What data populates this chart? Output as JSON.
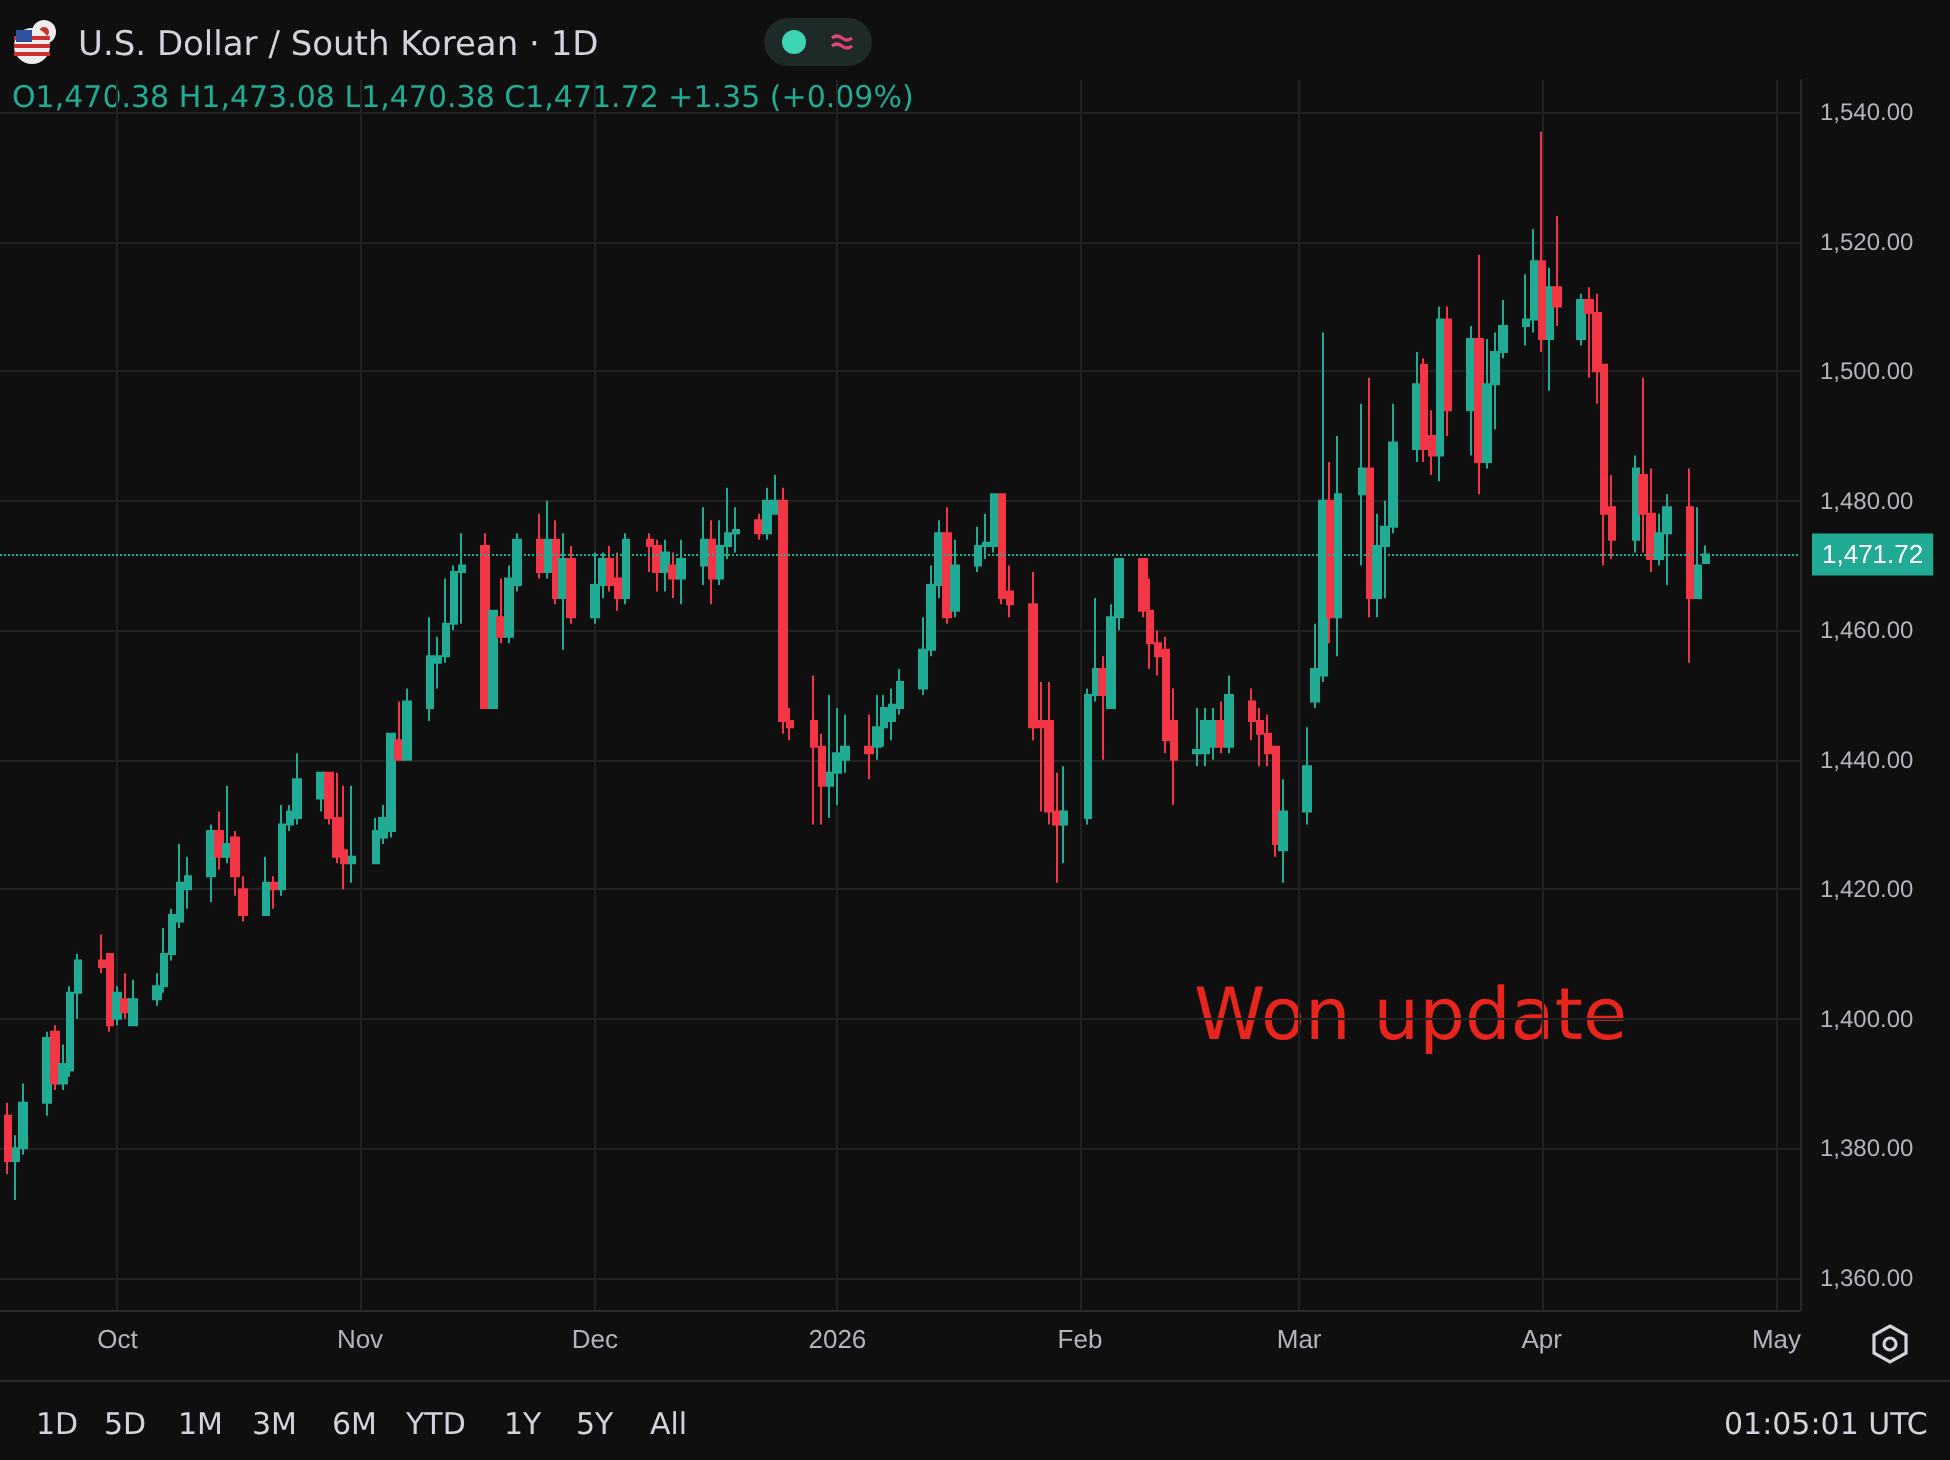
{
  "chart_data": {
    "type": "candlestick",
    "title": "U.S. Dollar / South Korean · 1D",
    "annotations": [
      "O1,470.38 H1,473.08 L1,470.38 C1,471.72 +1.35 (+0.09%)",
      "Won update",
      "1D",
      "5D",
      "1M",
      "3M",
      "6M",
      "YTD",
      "1Y",
      "5Y",
      "All",
      "01:05:01 UTC"
    ],
    "x": [
      "2025-09-17",
      "2025-09-18",
      "2025-09-19",
      "2025-09-22",
      "2025-09-23",
      "2025-09-24",
      "2025-09-25",
      "2025-09-26",
      "2025-09-29",
      "2025-09-30",
      "2025-10-01",
      "2025-10-02",
      "2025-10-03",
      "2025-10-06",
      "2025-10-07",
      "2025-10-08",
      "2025-10-09",
      "2025-10-10",
      "2025-10-13",
      "2025-10-14",
      "2025-10-15",
      "2025-10-16",
      "2025-10-17",
      "2025-10-20",
      "2025-10-21",
      "2025-10-22",
      "2025-10-23",
      "2025-10-24",
      "2025-10-27",
      "2025-10-28",
      "2025-10-29",
      "2025-10-30",
      "2025-10-31",
      "2025-11-03",
      "2025-11-04",
      "2025-11-05",
      "2025-11-06",
      "2025-11-07",
      "2025-11-10",
      "2025-11-11",
      "2025-11-12",
      "2025-11-13",
      "2025-11-14",
      "2025-11-17",
      "2025-11-18",
      "2025-11-19",
      "2025-11-20",
      "2025-11-21",
      "2025-11-24",
      "2025-11-25",
      "2025-11-26",
      "2025-11-27",
      "2025-11-28",
      "2025-12-01",
      "2025-12-02",
      "2025-12-03",
      "2025-12-04",
      "2025-12-05",
      "2025-12-08",
      "2025-12-09",
      "2025-12-10",
      "2025-12-11",
      "2025-12-12",
      "2025-12-15",
      "2025-12-16",
      "2025-12-17",
      "2025-12-18",
      "2025-12-19",
      "2025-12-22",
      "2025-12-23",
      "2025-12-24",
      "2025-12-25",
      "2025-12-26",
      "2025-12-29",
      "2025-12-30",
      "2025-12-31",
      "2026-01-01",
      "2026-01-02",
      "2026-01-05",
      "2026-01-06",
      "2026-01-07",
      "2026-01-08",
      "2026-01-09",
      "2026-01-12",
      "2026-01-13",
      "2026-01-14",
      "2026-01-15",
      "2026-01-16",
      "2026-01-19",
      "2026-01-20",
      "2026-01-21",
      "2026-01-22",
      "2026-01-23",
      "2026-01-26",
      "2026-01-27",
      "2026-01-28",
      "2026-01-29",
      "2026-01-30",
      "2026-02-02",
      "2026-02-03",
      "2026-02-04",
      "2026-02-05",
      "2026-02-06",
      "2026-02-09",
      "2026-02-10",
      "2026-02-11",
      "2026-02-12",
      "2026-02-13",
      "2026-02-16",
      "2026-02-17",
      "2026-02-18",
      "2026-02-19",
      "2026-02-20",
      "2026-02-23",
      "2026-02-24",
      "2026-02-25",
      "2026-02-26",
      "2026-02-27",
      "2026-03-02",
      "2026-03-03",
      "2026-03-04",
      "2026-03-05",
      "2026-03-06",
      "2026-03-09",
      "2026-03-10",
      "2026-03-11",
      "2026-03-12",
      "2026-03-13",
      "2026-03-16",
      "2026-03-17",
      "2026-03-18",
      "2026-03-19",
      "2026-03-20",
      "2026-03-23",
      "2026-03-24",
      "2026-03-25",
      "2026-03-26",
      "2026-03-27",
      "2026-03-30",
      "2026-03-31",
      "2026-04-01",
      "2026-04-02",
      "2026-04-03",
      "2026-04-06",
      "2026-04-07",
      "2026-04-08",
      "2026-04-09",
      "2026-04-10",
      "2026-04-13",
      "2026-04-14",
      "2026-04-15",
      "2026-04-16",
      "2026-04-17",
      "2026-04-20",
      "2026-04-21",
      "2026-04-22"
    ],
    "ohlc": [
      [
        1385,
        1387,
        1376,
        1378
      ],
      [
        1378,
        1382,
        1372,
        1380
      ],
      [
        1380,
        1390,
        1379,
        1387
      ],
      [
        1387,
        1398,
        1385,
        1397
      ],
      [
        1398,
        1399,
        1389,
        1390
      ],
      [
        1390,
        1396,
        1389,
        1393
      ],
      [
        1392,
        1405,
        1391,
        1404
      ],
      [
        1404,
        1410,
        1400,
        1409
      ],
      [
        1409,
        1413,
        1407,
        1408
      ],
      [
        1410,
        1410,
        1398,
        1399
      ],
      [
        1400,
        1405,
        1399,
        1404
      ],
      [
        1403,
        1407,
        1400,
        1401
      ],
      [
        1399,
        1406,
        1399,
        1403
      ],
      [
        1403,
        1407,
        1402,
        1405
      ],
      [
        1405,
        1414,
        1404,
        1410
      ],
      [
        1410,
        1417,
        1409,
        1416
      ],
      [
        1415,
        1427,
        1414,
        1421
      ],
      [
        1420,
        1425,
        1417,
        1422
      ],
      [
        1422,
        1430,
        1418,
        1429
      ],
      [
        1429,
        1432,
        1423,
        1425
      ],
      [
        1425,
        1436,
        1424,
        1427
      ],
      [
        1428,
        1429,
        1419,
        1422
      ],
      [
        1420,
        1422,
        1415,
        1416
      ],
      [
        1416,
        1425,
        1416,
        1421
      ],
      [
        1421,
        1422,
        1417,
        1420
      ],
      [
        1420,
        1433,
        1419,
        1430
      ],
      [
        1430,
        1433,
        1429,
        1432
      ],
      [
        1431,
        1441,
        1430,
        1437
      ],
      [
        1434,
        1438,
        1432,
        1438
      ],
      [
        1438,
        1438,
        1430,
        1431
      ],
      [
        1431,
        1438,
        1424,
        1425
      ],
      [
        1426,
        1436,
        1420,
        1424
      ],
      [
        1424,
        1436,
        1421,
        1425
      ],
      [
        1424,
        1431,
        1424,
        1429
      ],
      [
        1428,
        1433,
        1427,
        1431
      ],
      [
        1429,
        1444,
        1428,
        1444
      ],
      [
        1443,
        1449,
        1440,
        1440
      ],
      [
        1440,
        1451,
        1440,
        1449
      ],
      [
        1448,
        1462,
        1446,
        1456
      ],
      [
        1455,
        1459,
        1451,
        1456
      ],
      [
        1456,
        1468,
        1455,
        1461
      ],
      [
        1461,
        1470,
        1460,
        1469
      ],
      [
        1469,
        1475,
        1461,
        1470
      ],
      [
        1473,
        1475,
        1448,
        1448
      ],
      [
        1448,
        1463,
        1448,
        1463
      ],
      [
        1462,
        1468,
        1458,
        1459
      ],
      [
        1459,
        1470,
        1458,
        1468
      ],
      [
        1467,
        1475,
        1466,
        1474
      ],
      [
        1474,
        1478,
        1468,
        1469
      ],
      [
        1469,
        1480,
        1468,
        1474
      ],
      [
        1474,
        1477,
        1464,
        1465
      ],
      [
        1465,
        1475,
        1457,
        1471
      ],
      [
        1471,
        1473,
        1461,
        1462
      ],
      [
        1462,
        1472,
        1461,
        1467
      ],
      [
        1467,
        1472,
        1465,
        1471
      ],
      [
        1471,
        1473,
        1466,
        1467
      ],
      [
        1468,
        1472,
        1463,
        1465
      ],
      [
        1465,
        1475,
        1464,
        1474
      ],
      [
        1474,
        1475,
        1469,
        1473
      ],
      [
        1473,
        1474,
        1466,
        1469
      ],
      [
        1469,
        1474,
        1466,
        1472
      ],
      [
        1470,
        1472,
        1465,
        1468
      ],
      [
        1468,
        1474,
        1464,
        1471
      ],
      [
        1470,
        1479,
        1467,
        1474
      ],
      [
        1474,
        1477,
        1464,
        1468
      ],
      [
        1468,
        1477,
        1467,
        1473
      ],
      [
        1473,
        1482,
        1471,
        1475
      ],
      [
        1475,
        1479,
        1472,
        1475.5
      ],
      [
        1477,
        1478,
        1474,
        1475
      ],
      [
        1475,
        1482,
        1474,
        1480
      ],
      [
        1478,
        1484,
        1478,
        1480
      ],
      [
        1480,
        1482,
        1444,
        1446
      ],
      [
        1446,
        1448,
        1443,
        1445
      ],
      [
        1446,
        1453,
        1430,
        1442
      ],
      [
        1442,
        1444,
        1430,
        1436
      ],
      [
        1436,
        1450,
        1431,
        1438
      ],
      [
        1438,
        1448,
        1433,
        1441
      ],
      [
        1440,
        1447,
        1438,
        1442
      ],
      [
        1442,
        1447,
        1437,
        1441
      ],
      [
        1442,
        1450,
        1440,
        1445
      ],
      [
        1445,
        1450,
        1442,
        1448
      ],
      [
        1446,
        1451,
        1443,
        1448.5
      ],
      [
        1448,
        1454,
        1447,
        1452
      ],
      [
        1451,
        1462,
        1450,
        1457
      ],
      [
        1457,
        1470,
        1456,
        1467
      ],
      [
        1467,
        1477,
        1465,
        1475
      ],
      [
        1475,
        1479,
        1461,
        1462
      ],
      [
        1463,
        1474,
        1462,
        1470
      ],
      [
        1470,
        1476,
        1469,
        1473
      ],
      [
        1473,
        1478,
        1471,
        1473.5
      ],
      [
        1473,
        1481,
        1472,
        1481
      ],
      [
        1481,
        1481,
        1464,
        1465
      ],
      [
        1466,
        1470,
        1462,
        1464
      ],
      [
        1464,
        1469,
        1443,
        1445
      ],
      [
        1446,
        1452,
        1432,
        1445
      ],
      [
        1446,
        1452,
        1430,
        1432
      ],
      [
        1432,
        1438,
        1421,
        1430
      ],
      [
        1430,
        1439,
        1424,
        1432
      ],
      [
        1431,
        1451,
        1430,
        1450
      ],
      [
        1450,
        1465,
        1449,
        1454
      ],
      [
        1454,
        1456,
        1440,
        1450
      ],
      [
        1448,
        1464,
        1448,
        1462
      ],
      [
        1462,
        1471,
        1460,
        1471
      ],
      [
        1471,
        1471,
        1462,
        1463
      ],
      [
        1463,
        1468,
        1454,
        1458
      ],
      [
        1458,
        1460,
        1453,
        1456
      ],
      [
        1457,
        1459,
        1441,
        1443
      ],
      [
        1446,
        1451,
        1433,
        1440
      ],
      [
        1441,
        1448,
        1439,
        1441.5
      ],
      [
        1441,
        1448,
        1439,
        1446
      ],
      [
        1442,
        1448,
        1440,
        1446
      ],
      [
        1446,
        1449,
        1441,
        1442
      ],
      [
        1442,
        1453,
        1441,
        1450
      ],
      [
        1449,
        1451,
        1443,
        1446
      ],
      [
        1446,
        1448,
        1439,
        1444
      ],
      [
        1444,
        1447,
        1439,
        1441
      ],
      [
        1442,
        1442,
        1425,
        1427
      ],
      [
        1426,
        1437,
        1421,
        1432
      ],
      [
        1432,
        1445,
        1430,
        1439
      ],
      [
        1449,
        1461,
        1448,
        1454
      ],
      [
        1453,
        1506,
        1452,
        1480
      ],
      [
        1480,
        1486,
        1458,
        1462
      ],
      [
        1462,
        1490,
        1456,
        1481
      ],
      [
        1481,
        1495,
        1470,
        1485
      ],
      [
        1485,
        1499,
        1462,
        1465
      ],
      [
        1465,
        1478,
        1462,
        1473
      ],
      [
        1473,
        1480,
        1465,
        1476
      ],
      [
        1476,
        1495,
        1475,
        1489
      ],
      [
        1488,
        1503,
        1486,
        1498
      ],
      [
        1501,
        1502,
        1486,
        1488
      ],
      [
        1490,
        1494,
        1484,
        1487
      ],
      [
        1487,
        1510,
        1483,
        1508
      ],
      [
        1508,
        1510,
        1490,
        1494
      ],
      [
        1494,
        1507,
        1487,
        1505
      ],
      [
        1505,
        1518,
        1481,
        1486
      ],
      [
        1486,
        1505,
        1485,
        1498
      ],
      [
        1498,
        1506,
        1491,
        1503
      ],
      [
        1503,
        1511,
        1502,
        1507
      ],
      [
        1507,
        1515,
        1504,
        1508
      ],
      [
        1508,
        1522,
        1506,
        1517
      ],
      [
        1517,
        1537,
        1503,
        1505
      ],
      [
        1505,
        1516,
        1497,
        1513
      ],
      [
        1513,
        1524,
        1507,
        1510
      ],
      [
        1505,
        1512,
        1504,
        1511
      ],
      [
        1511,
        1513,
        1499,
        1509
      ],
      [
        1509,
        1512,
        1495,
        1500
      ],
      [
        1501,
        1501,
        1470,
        1478
      ],
      [
        1479,
        1484,
        1471,
        1474
      ],
      [
        1474,
        1487,
        1472,
        1485
      ],
      [
        1484,
        1499,
        1472,
        1478
      ],
      [
        1478,
        1485,
        1469,
        1471
      ],
      [
        1471,
        1478,
        1470,
        1475
      ],
      [
        1475,
        1481,
        1467,
        1479
      ],
      [
        1479,
        1485,
        1455,
        1465
      ],
      [
        1465,
        1479,
        1465,
        1470
      ],
      [
        1470.38,
        1473.08,
        1470.38,
        1471.72
      ]
    ],
    "xlim": [
      "2025-09-16",
      "2026-05-04"
    ],
    "xticks": [
      {
        "value": "2025-10-01",
        "label": "Oct"
      },
      {
        "value": "2025-11-01",
        "label": "Nov"
      },
      {
        "value": "2025-12-01",
        "label": "Dec"
      },
      {
        "value": "2026-01-01",
        "label": "2026"
      },
      {
        "value": "2026-02-01",
        "label": "Feb"
      },
      {
        "value": "2026-03-01",
        "label": "Mar"
      },
      {
        "value": "2026-04-01",
        "label": "Apr"
      },
      {
        "value": "2026-05-01",
        "label": "May"
      }
    ],
    "ylim": [
      1355,
      1545
    ],
    "yticks": [
      {
        "value": 1360,
        "label": "1,360.00"
      },
      {
        "value": 1380,
        "label": "1,380.00"
      },
      {
        "value": 1400,
        "label": "1,400.00"
      },
      {
        "value": 1420,
        "label": "1,420.00"
      },
      {
        "value": 1440,
        "label": "1,440.00"
      },
      {
        "value": 1460,
        "label": "1,460.00"
      },
      {
        "value": 1480,
        "label": "1,480.00"
      },
      {
        "value": 1500,
        "label": "1,500.00"
      },
      {
        "value": 1520,
        "label": "1,520.00"
      },
      {
        "value": 1540,
        "label": "1,540.00"
      }
    ],
    "grid": true,
    "ref_lines": [
      {
        "axis": "y",
        "value": 1471.72,
        "label": "1,471.72",
        "color": "#22ab94",
        "line_style": "dotted"
      }
    ]
  }
}
